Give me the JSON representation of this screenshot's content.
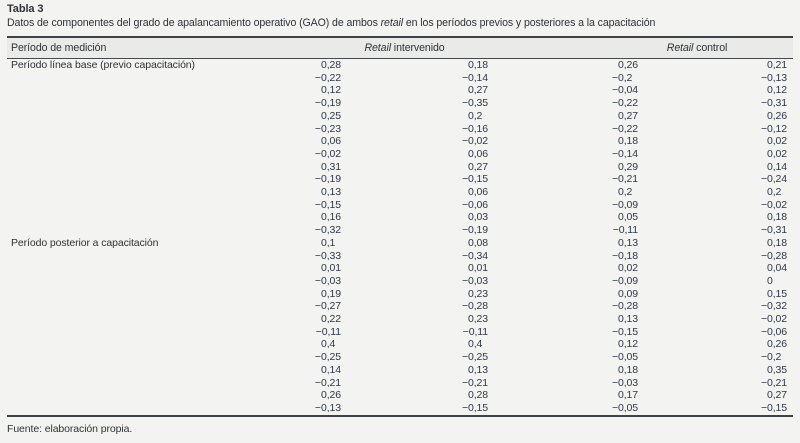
{
  "title": "Tabla 3",
  "subtitle": {
    "before": "Datos de componentes del grado de apalancamiento operativo (GAO) de ambos ",
    "italic": "retail",
    "after": " en los períodos previos y posteriores a la capacitación"
  },
  "table": {
    "measurement_col_header": "Período de medición",
    "group1": {
      "italic": "Retail",
      "rest": " intervenido"
    },
    "group2": {
      "italic": "Retail",
      "rest": " control"
    },
    "sections": [
      {
        "label": "Período línea base (previo capacitación)",
        "rows": [
          [
            "0,28",
            "0,18",
            "0,26",
            "0,21"
          ],
          [
            "−0,22",
            "−0,14",
            "−0,2",
            "−0,13"
          ],
          [
            "0,12",
            "0,27",
            "−0,04",
            "0,12"
          ],
          [
            "−0,19",
            "−0,35",
            "−0,22",
            "−0,31"
          ],
          [
            "0,25",
            "0,2",
            "0,27",
            "0,26"
          ],
          [
            "−0,23",
            "−0,16",
            "−0,22",
            "−0,12"
          ],
          [
            "0,06",
            "−0,02",
            "0,18",
            "0,02"
          ],
          [
            "−0,02",
            "0,06",
            "−0,14",
            "0,02"
          ],
          [
            "0,31",
            "0,27",
            "0,29",
            "0,14"
          ],
          [
            "−0,19",
            "−0,15",
            "−0,21",
            "−0,24"
          ],
          [
            "0,13",
            "0,06",
            "0,2",
            "0,2"
          ],
          [
            "−0,15",
            "−0,06",
            "−0,09",
            "−0,02"
          ],
          [
            "0,16",
            "0,03",
            "0,05",
            "0,18"
          ],
          [
            "−0,32",
            "−0,19",
            "−0,11",
            "−0,31"
          ]
        ]
      },
      {
        "label": "Período posterior a capacitación",
        "rows": [
          [
            "0,1",
            "0,08",
            "0,13",
            "0,18"
          ],
          [
            "−0,33",
            "−0,34",
            "−0,18",
            "−0,28"
          ],
          [
            "0,01",
            "0,01",
            "0,02",
            "0,04"
          ],
          [
            "−0,03",
            "−0,03",
            "−0,09",
            "0"
          ],
          [
            "0,19",
            "0,23",
            "0,09",
            "0,15"
          ],
          [
            "−0,27",
            "−0,28",
            "−0,28",
            "−0,32"
          ],
          [
            "0,22",
            "0,23",
            "0,13",
            "−0,02"
          ],
          [
            "−0,11",
            "−0,11",
            "−0,15",
            "−0,06"
          ],
          [
            "0,4",
            "0,4",
            "0,12",
            "0,26"
          ],
          [
            "−0,25",
            "−0,25",
            "−0,05",
            "−0,2"
          ],
          [
            "0,14",
            "0,13",
            "0,18",
            "0,35"
          ],
          [
            "−0,21",
            "−0,21",
            "−0,03",
            "−0,21"
          ],
          [
            "0,26",
            "0,28",
            "0,17",
            "0,27"
          ],
          [
            "−0,13",
            "−0,15",
            "−0,05",
            "−0,15"
          ]
        ]
      }
    ]
  },
  "footer": "Fuente: elaboración propia."
}
